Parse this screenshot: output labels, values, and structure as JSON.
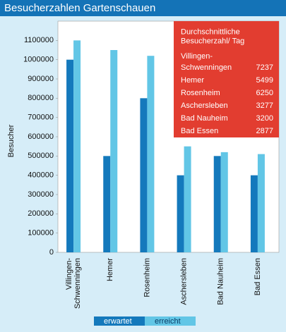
{
  "chart_data": {
    "type": "bar",
    "title": "Besucherzahlen Gartenschauen",
    "y_label": "Besucher",
    "categories": [
      "Villingen-\nSchwenningen",
      "Hemer",
      "Rosenheim",
      "Aschersleben",
      "Bad Nauheim",
      "Bad Essen"
    ],
    "series": [
      {
        "name": "erwartet",
        "color": "#1479bc",
        "values": [
          1000000,
          500000,
          800000,
          400000,
          500000,
          400000
        ]
      },
      {
        "name": "erreicht",
        "color": "#62c6e6",
        "values": [
          1100000,
          1050000,
          1020000,
          550000,
          520000,
          510000
        ]
      }
    ],
    "ylim": [
      0,
      1200000
    ],
    "yticks": [
      0,
      {
        "value": 100000,
        "label": "100000"
      },
      {
        "value": 200000,
        "label": "200000"
      },
      {
        "value": 300000,
        "label": "300000"
      },
      {
        "value": 400000,
        "label": "400000"
      },
      {
        "value": 500000,
        "label": "500000"
      },
      {
        "value": 600000,
        "label": "600000"
      },
      {
        "value": 700000,
        "label": "700000"
      },
      {
        "value": 800000,
        "label": "800000"
      },
      {
        "value": 900000,
        "label": "900000"
      },
      {
        "value": 1000000,
        "label": "1000000"
      },
      {
        "value": 1100000,
        "label": "1100000"
      }
    ],
    "legend": "bottom",
    "daily_average": {
      "title": "Durchschnittliche\nBesucherzahl/ Tag",
      "categories": [
        "Villingen-\nSchwenningen",
        "Hemer",
        "Rosenheim",
        "Aschersleben",
        "Bad Nauheim",
        "Bad Essen"
      ],
      "values": [
        7237,
        5499,
        6250,
        3277,
        3200,
        2877
      ],
      "value_labels": [
        "7237",
        "5499",
        "6250",
        "3277",
        "3200",
        "2877"
      ],
      "color": "#e23d30"
    }
  }
}
